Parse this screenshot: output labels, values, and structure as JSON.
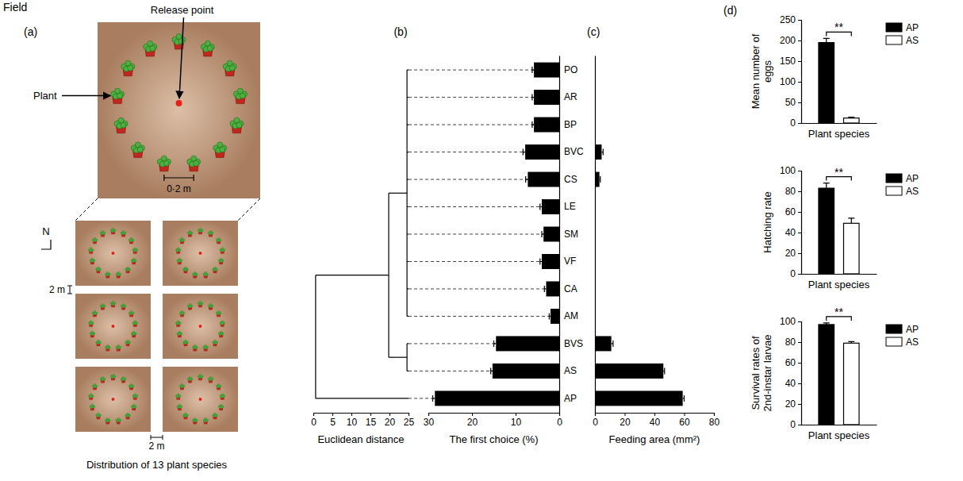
{
  "figure_title": "Field",
  "diagram": {
    "panel_label": "(a)",
    "release_label": "Release point",
    "plant_label": "Plant",
    "scale_label": "0·2 m",
    "north_label": "N",
    "row_gap_label": "2 m",
    "col_gap_label": "2 m",
    "caption": "Distribution of 13 plant species"
  },
  "chart_data": [
    {
      "type": "dendrogram",
      "panel_label": "(b)",
      "xlabel": "Euclidean distance",
      "xlim": [
        0,
        25
      ],
      "xticks": [
        0,
        5,
        10,
        15,
        20,
        25
      ],
      "merges": [
        {
          "leaves": [
            0,
            1,
            2,
            3,
            4,
            5,
            6,
            7,
            8,
            9
          ],
          "distance": 24.6
        },
        {
          "leaves": [
            10,
            11
          ],
          "distance": 24.6
        },
        {
          "clusters": [
            0,
            1
          ],
          "distance": 19.8
        },
        {
          "leaves": [
            12
          ],
          "clusters": [
            2
          ],
          "distance": 0.6
        }
      ]
    },
    {
      "type": "bar",
      "orientation": "horizontal",
      "xlabel": "The first choice (%)",
      "categories": [
        "PO",
        "AR",
        "BP",
        "BVC",
        "CS",
        "LE",
        "SM",
        "VF",
        "CA",
        "AM",
        "BVS",
        "AS",
        "AP"
      ],
      "values": [
        5.8,
        5.8,
        5.8,
        7.8,
        7.2,
        4.0,
        3.6,
        4.0,
        3.0,
        2.0,
        14.5,
        15.3,
        28.5
      ],
      "errors": [
        0.4,
        0.4,
        0.4,
        0.5,
        0.5,
        0.4,
        0.4,
        0.4,
        0.4,
        0.3,
        0.5,
        0.4,
        0.5
      ],
      "color": "#000000",
      "xlim": [
        30,
        0
      ],
      "xticks": [
        30,
        20,
        10,
        0
      ]
    },
    {
      "type": "bar",
      "orientation": "horizontal",
      "panel_label": "(c)",
      "xlabel": "Feeding area (mm²)",
      "categories": [
        null,
        null,
        null,
        null,
        null,
        null,
        null,
        null,
        null,
        null,
        null,
        null,
        null
      ],
      "values": [
        0,
        0,
        0,
        4.5,
        3,
        0,
        0,
        0,
        0,
        0,
        11,
        46,
        59
      ],
      "errors": [
        0,
        0,
        0,
        1,
        0.6,
        0,
        0,
        0,
        0,
        0,
        1.2,
        0.8,
        1
      ],
      "color": "#000000",
      "xlim": [
        0,
        80
      ],
      "xticks": [
        0,
        20,
        40,
        60,
        80
      ]
    },
    {
      "type": "bar",
      "panel_label": "(d)",
      "ylabel": "Mean number of eggs",
      "xlabel": "Plant species",
      "categories": [
        null
      ],
      "series": [
        {
          "name": "AP",
          "color": "#000000",
          "values": [
            195
          ],
          "errors": [
            10
          ]
        },
        {
          "name": "AS",
          "color": "#ffffff",
          "values": [
            12
          ],
          "errors": [
            2
          ]
        }
      ],
      "ylim": [
        0,
        250
      ],
      "yticks": [
        0,
        50,
        100,
        150,
        200,
        250
      ],
      "legend": "right",
      "tick_labels": "y",
      "annotations": [
        {
          "text": "**"
        }
      ]
    },
    {
      "type": "bar",
      "ylabel": "Hatching rate",
      "xlabel": "Plant species",
      "categories": [
        null
      ],
      "series": [
        {
          "name": "AP",
          "color": "#000000",
          "values": [
            83
          ],
          "errors": [
            5
          ]
        },
        {
          "name": "AS",
          "color": "#ffffff",
          "values": [
            49
          ],
          "errors": [
            5
          ]
        }
      ],
      "ylim": [
        0,
        100
      ],
      "yticks": [
        0,
        20,
        40,
        60,
        80,
        100
      ],
      "legend": "right",
      "tick_labels": "y",
      "annotations": [
        {
          "text": "**"
        }
      ]
    },
    {
      "type": "bar",
      "ylabel": "Survival rates of 2nd-instar larvae",
      "xlabel": "Plant species",
      "categories": [
        null
      ],
      "series": [
        {
          "name": "AP",
          "color": "#000000",
          "values": [
            97
          ],
          "errors": [
            1.5
          ]
        },
        {
          "name": "AS",
          "color": "#ffffff",
          "values": [
            79
          ],
          "errors": [
            1.5
          ]
        }
      ],
      "ylim": [
        0,
        100
      ],
      "yticks": [
        0,
        20,
        40,
        60,
        80,
        100
      ],
      "legend": "right",
      "tick_labels": "y",
      "annotations": [
        {
          "text": "**"
        }
      ]
    }
  ]
}
